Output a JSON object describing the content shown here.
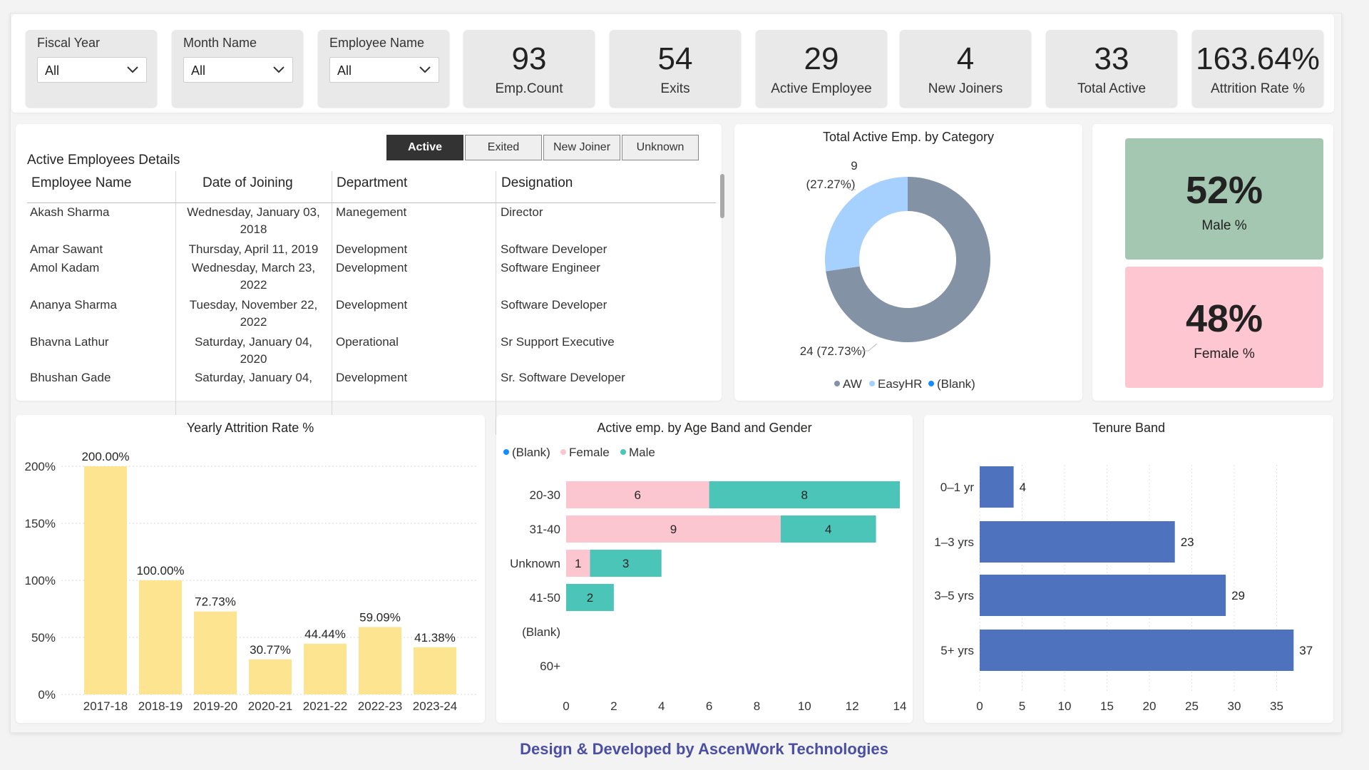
{
  "slicers": [
    {
      "title": "Fiscal Year",
      "value": "All"
    },
    {
      "title": "Month Name",
      "value": "All"
    },
    {
      "title": "Employee Name",
      "value": "All"
    }
  ],
  "kpis": [
    {
      "value": "93",
      "label": "Emp.Count"
    },
    {
      "value": "54",
      "label": "Exits"
    },
    {
      "value": "29",
      "label": "Active Employee"
    },
    {
      "value": "4",
      "label": "New Joiners"
    },
    {
      "value": "33",
      "label": "Total Active"
    },
    {
      "value": "163.64%",
      "label": "Attrition Rate %"
    }
  ],
  "details": {
    "title": "Active Employees Details",
    "tabs": [
      {
        "label": "Active",
        "active": true
      },
      {
        "label": "Exited",
        "active": false
      },
      {
        "label": "New Joiner",
        "active": false
      },
      {
        "label": "Unknown",
        "active": false
      }
    ],
    "columns": [
      "Employee Name",
      "Date of Joining",
      "Department",
      "Designation"
    ],
    "rows": [
      {
        "name": "Akash Sharma",
        "date1": "Wednesday, January 03,",
        "date2": "2018",
        "dept": "Manegement",
        "desig": "Director"
      },
      {
        "name": "Amar Sawant",
        "date1": "Thursday, April 11, 2019",
        "date2": "",
        "dept": "Development",
        "desig": "Software Developer"
      },
      {
        "name": "Amol Kadam",
        "date1": "Wednesday, March 23,",
        "date2": "2022",
        "dept": "Development",
        "desig": "Software Engineer"
      },
      {
        "name": "Ananya Sharma",
        "date1": "Tuesday, November 22,",
        "date2": "2022",
        "dept": "Development",
        "desig": "Software Developer"
      },
      {
        "name": "Bhavna Lathur",
        "date1": "Saturday, January 04,",
        "date2": "2020",
        "dept": "Operational",
        "desig": "Sr Support Executive"
      },
      {
        "name": "Bhushan Gade",
        "date1": "Saturday, January 04,",
        "date2": "",
        "dept": "Development",
        "desig": "Sr. Software Developer"
      }
    ]
  },
  "gender": {
    "male": {
      "value": "52%",
      "label": "Male %",
      "color": "#a3c7b0"
    },
    "female": {
      "value": "48%",
      "label": "Female %",
      "color": "#fec6d0"
    }
  },
  "footer": "Design & Developed by AscenWork Technologies",
  "chart_data": [
    {
      "type": "pie",
      "subtype": "donut",
      "title": "Total Active Emp. by Category",
      "legend": [
        "AW",
        "EasyHR",
        "(Blank)"
      ],
      "legend_colors": [
        "#8393a5",
        "#a6d1ff",
        "#118dff"
      ],
      "slices": [
        {
          "name": "AW",
          "value": 24,
          "label": "24 (72.73%)",
          "color": "#8393a5"
        },
        {
          "name": "EasyHR",
          "value": 9,
          "label_count": "9",
          "label_pct": "(27.27%)",
          "color": "#a6d1ff"
        }
      ]
    },
    {
      "type": "bar",
      "title": "Yearly Attrition Rate %",
      "categories": [
        "2017-18",
        "2018-19",
        "2019-20",
        "2020-21",
        "2021-22",
        "2022-23",
        "2023-24"
      ],
      "values": [
        200.0,
        100.0,
        72.73,
        30.77,
        44.44,
        59.09,
        41.38
      ],
      "data_labels": [
        "200.00%",
        "100.00%",
        "72.73%",
        "30.77%",
        "44.44%",
        "59.09%",
        "41.38%"
      ],
      "yticks": [
        "0%",
        "50%",
        "100%",
        "150%",
        "200%"
      ],
      "ylim": [
        0,
        200
      ],
      "color": "#fde491",
      "grid": true
    },
    {
      "type": "bar",
      "orientation": "horizontal",
      "stacked": true,
      "title": "Active emp. by Age Band and Gender",
      "legend": [
        "(Blank)",
        "Female",
        "Male"
      ],
      "legend_colors": [
        "#118dff",
        "#fcc6d0",
        "#4bc5b8"
      ],
      "categories": [
        "20-30",
        "31-40",
        "Unknown",
        "41-50",
        "(Blank)",
        "60+"
      ],
      "series": [
        {
          "name": "Female",
          "values": [
            6,
            9,
            1,
            0,
            0,
            0
          ],
          "color": "#fcc6d0"
        },
        {
          "name": "Male",
          "values": [
            8,
            4,
            3,
            2,
            0,
            0
          ],
          "color": "#4bc5b8"
        }
      ],
      "xticks": [
        "0",
        "2",
        "4",
        "6",
        "8",
        "10",
        "12",
        "14"
      ],
      "xlim": [
        0,
        14
      ]
    },
    {
      "type": "bar",
      "orientation": "horizontal",
      "title": "Tenure Band",
      "categories": [
        "0–1 yr",
        "1–3 yrs",
        "3–5 yrs",
        "5+ yrs"
      ],
      "values": [
        4,
        23,
        29,
        37
      ],
      "xticks": [
        "0",
        "5",
        "10",
        "15",
        "20",
        "25",
        "30",
        "35"
      ],
      "xlim": [
        0,
        37
      ],
      "color": "#4e72bd",
      "grid": true
    }
  ]
}
